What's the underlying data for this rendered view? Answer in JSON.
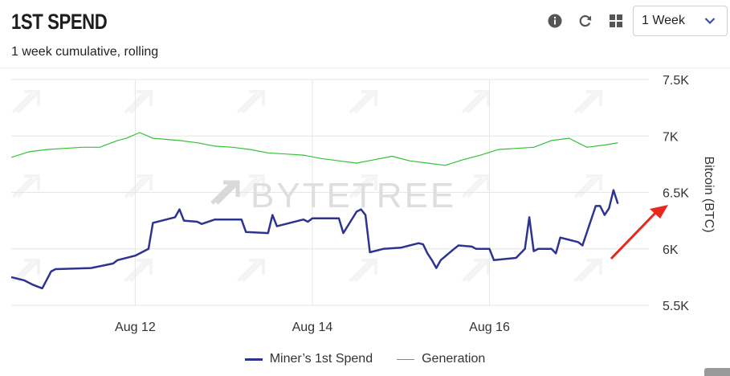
{
  "header": {
    "title": "1ST SPEND",
    "subtitle": "1 week cumulative, rolling",
    "icons": [
      "info-icon",
      "refresh-icon",
      "grid-icon"
    ],
    "range_selected": "1 Week"
  },
  "watermark": "BYTETREE",
  "colors": {
    "miners_spend": "#2d3490",
    "generation": "#33c233",
    "annotation_arrow": "#e8281e"
  },
  "chart_data": {
    "type": "line",
    "title": "1ST SPEND",
    "subtitle": "1 week cumulative, rolling",
    "ylabel": "Bitcoin (BTC)",
    "ylim": [
      5500,
      7600
    ],
    "yticks": [
      5500,
      6000,
      6500,
      7000,
      7500
    ],
    "ytick_labels": [
      "5.5K",
      "6K",
      "6.5K",
      "7K",
      "7.5K"
    ],
    "xlim": [
      10.6,
      17.8
    ],
    "xticks": [
      12,
      14,
      16
    ],
    "xtick_labels": [
      "Aug 12",
      "Aug 14",
      "Aug 16"
    ],
    "grid": true,
    "legend_position": "bottom",
    "series": [
      {
        "name": "Miner’s 1st Spend",
        "x": [
          10.6,
          10.75,
          10.85,
          10.95,
          11.05,
          11.1,
          11.5,
          11.75,
          11.8,
          12.0,
          12.15,
          12.2,
          12.45,
          12.5,
          12.55,
          12.7,
          12.75,
          12.9,
          13.2,
          13.25,
          13.5,
          13.55,
          13.6,
          13.9,
          13.95,
          14.0,
          14.3,
          14.35,
          14.5,
          14.55,
          14.6,
          14.65,
          14.8,
          15.0,
          15.2,
          15.25,
          15.3,
          15.35,
          15.4,
          15.45,
          15.6,
          15.65,
          15.8,
          15.85,
          16.0,
          16.05,
          16.3,
          16.4,
          16.45,
          16.5,
          16.55,
          16.7,
          16.75,
          16.8,
          16.9,
          17.0,
          17.05,
          17.2,
          17.25,
          17.3,
          17.35,
          17.4,
          17.45
        ],
        "values": [
          5750,
          5720,
          5680,
          5650,
          5800,
          5820,
          5830,
          5870,
          5900,
          5940,
          6000,
          6230,
          6280,
          6350,
          6250,
          6240,
          6220,
          6260,
          6260,
          6150,
          6140,
          6300,
          6200,
          6260,
          6240,
          6270,
          6270,
          6140,
          6330,
          6350,
          6300,
          5970,
          6000,
          6010,
          6050,
          6040,
          5960,
          5900,
          5830,
          5900,
          6000,
          6030,
          6020,
          6000,
          6000,
          5900,
          5920,
          6000,
          6280,
          5980,
          6000,
          6000,
          5960,
          6100,
          6080,
          6060,
          6030,
          6380,
          6380,
          6300,
          6360,
          6520,
          6400
        ]
      },
      {
        "name": "Generation",
        "x": [
          10.6,
          10.8,
          11.0,
          11.2,
          11.4,
          11.6,
          11.8,
          11.9,
          12.05,
          12.2,
          12.5,
          12.7,
          12.9,
          13.1,
          13.3,
          13.5,
          13.7,
          13.9,
          14.1,
          14.3,
          14.5,
          14.7,
          14.9,
          15.1,
          15.3,
          15.5,
          15.7,
          15.9,
          16.1,
          16.3,
          16.5,
          16.7,
          16.9,
          17.1,
          17.3,
          17.45
        ],
        "values": [
          6810,
          6860,
          6880,
          6890,
          6900,
          6900,
          6960,
          6980,
          7030,
          6980,
          6960,
          6940,
          6910,
          6900,
          6880,
          6850,
          6840,
          6830,
          6800,
          6780,
          6760,
          6790,
          6820,
          6780,
          6760,
          6740,
          6790,
          6830,
          6880,
          6890,
          6900,
          6960,
          6980,
          6900,
          6920,
          6940
        ]
      }
    ]
  }
}
